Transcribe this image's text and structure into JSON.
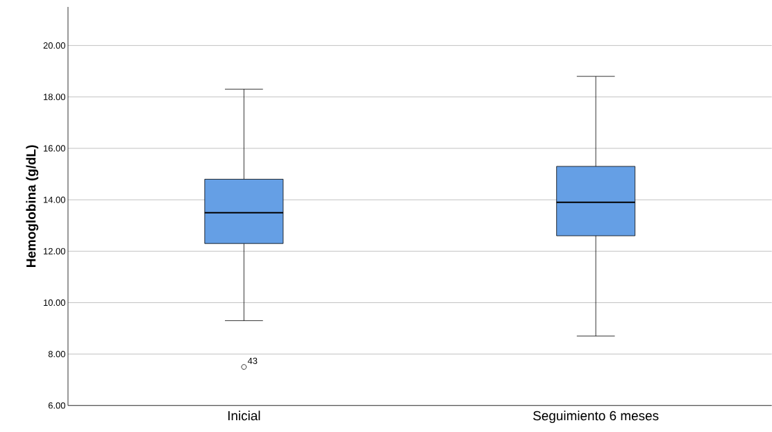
{
  "chart_data": {
    "type": "box",
    "ylabel": "Hemoglobina (g/dL)",
    "categories": [
      "Inicial",
      "Seguimiento 6 meses"
    ],
    "boxes": [
      {
        "low": 9.3,
        "q1": 12.3,
        "median": 13.5,
        "q3": 14.8,
        "high": 18.3,
        "outliers": [
          7.5
        ]
      },
      {
        "low": 8.7,
        "q1": 12.6,
        "median": 13.9,
        "q3": 15.3,
        "high": 18.8
      }
    ],
    "color": "#659fe5",
    "ylim": [
      6,
      21.5
    ],
    "yticks": [
      {
        "value": 6,
        "label": "6.00"
      },
      {
        "value": 8,
        "label": "8.00"
      },
      {
        "value": 10,
        "label": "10.00"
      },
      {
        "value": 12,
        "label": "12.00"
      },
      {
        "value": 14,
        "label": "14.00"
      },
      {
        "value": 16,
        "label": "16.00"
      },
      {
        "value": 18,
        "label": "18.00"
      },
      {
        "value": 20,
        "label": "20.00"
      }
    ],
    "grid": "y",
    "annotations": [
      "43"
    ]
  }
}
